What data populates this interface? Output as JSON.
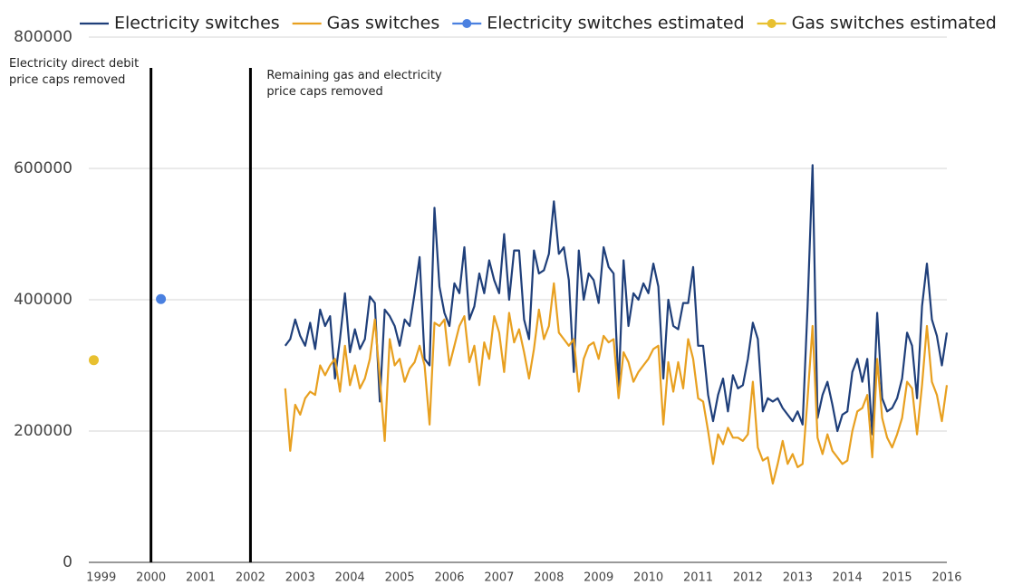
{
  "chart_data": {
    "type": "line",
    "series": [
      {
        "name": "Electricity switches",
        "color": "#1f3f7a",
        "x": [
          2002.7,
          2002.8,
          2002.9,
          2003.0,
          2003.1,
          2003.2,
          2003.3,
          2003.4,
          2003.5,
          2003.6,
          2003.7,
          2003.8,
          2003.9,
          2004.0,
          2004.1,
          2004.2,
          2004.3,
          2004.4,
          2004.5,
          2004.6,
          2004.7,
          2004.8,
          2004.9,
          2005.0,
          2005.1,
          2005.2,
          2005.3,
          2005.4,
          2005.5,
          2005.6,
          2005.7,
          2005.8,
          2005.9,
          2006.0,
          2006.1,
          2006.2,
          2006.3,
          2006.4,
          2006.5,
          2006.6,
          2006.7,
          2006.8,
          2006.9,
          2007.0,
          2007.1,
          2007.2,
          2007.3,
          2007.4,
          2007.5,
          2007.6,
          2007.7,
          2007.8,
          2007.9,
          2008.0,
          2008.1,
          2008.2,
          2008.3,
          2008.4,
          2008.5,
          2008.6,
          2008.7,
          2008.8,
          2008.9,
          2009.0,
          2009.1,
          2009.2,
          2009.3,
          2009.4,
          2009.5,
          2009.6,
          2009.7,
          2009.8,
          2009.9,
          2010.0,
          2010.1,
          2010.2,
          2010.3,
          2010.4,
          2010.5,
          2010.6,
          2010.7,
          2010.8,
          2010.9,
          2011.0,
          2011.1,
          2011.2,
          2011.3,
          2011.4,
          2011.5,
          2011.6,
          2011.7,
          2011.8,
          2011.9,
          2012.0,
          2012.1,
          2012.2,
          2012.3,
          2012.4,
          2012.5,
          2012.6,
          2012.7,
          2012.8,
          2012.9,
          2013.0,
          2013.1,
          2013.2,
          2013.3,
          2013.4,
          2013.5,
          2013.6,
          2013.7,
          2013.8,
          2013.9,
          2014.0,
          2014.1,
          2014.2,
          2014.3,
          2014.4,
          2014.5,
          2014.6,
          2014.7,
          2014.8,
          2014.9,
          2015.0,
          2015.1,
          2015.2,
          2015.3,
          2015.4,
          2015.5,
          2015.6,
          2015.7,
          2015.8,
          2015.9,
          2016.0
        ],
        "values": [
          330000,
          340000,
          370000,
          345000,
          330000,
          365000,
          325000,
          385000,
          360000,
          375000,
          280000,
          340000,
          410000,
          320000,
          355000,
          325000,
          340000,
          405000,
          395000,
          245000,
          385000,
          375000,
          360000,
          330000,
          370000,
          360000,
          410000,
          465000,
          310000,
          300000,
          540000,
          420000,
          380000,
          360000,
          425000,
          410000,
          480000,
          370000,
          390000,
          440000,
          410000,
          460000,
          430000,
          410000,
          500000,
          400000,
          475000,
          475000,
          370000,
          340000,
          475000,
          440000,
          445000,
          470000,
          550000,
          470000,
          480000,
          430000,
          290000,
          475000,
          400000,
          440000,
          430000,
          395000,
          480000,
          450000,
          440000,
          265000,
          460000,
          360000,
          410000,
          400000,
          425000,
          410000,
          455000,
          420000,
          280000,
          400000,
          360000,
          355000,
          395000,
          395000,
          450000,
          330000,
          330000,
          255000,
          215000,
          255000,
          280000,
          230000,
          285000,
          265000,
          270000,
          310000,
          365000,
          340000,
          230000,
          250000,
          245000,
          250000,
          235000,
          225000,
          215000,
          230000,
          210000,
          390000,
          605000,
          220000,
          255000,
          275000,
          240000,
          200000,
          225000,
          230000,
          290000,
          310000,
          275000,
          310000,
          195000,
          380000,
          250000,
          230000,
          235000,
          250000,
          280000,
          350000,
          330000,
          250000,
          390000,
          455000,
          370000,
          345000,
          300000,
          350000
        ]
      },
      {
        "name": "Gas switches",
        "color": "#e8a020",
        "x": [
          2002.7,
          2002.8,
          2002.9,
          2003.0,
          2003.1,
          2003.2,
          2003.3,
          2003.4,
          2003.5,
          2003.6,
          2003.7,
          2003.8,
          2003.9,
          2004.0,
          2004.1,
          2004.2,
          2004.3,
          2004.4,
          2004.5,
          2004.6,
          2004.7,
          2004.8,
          2004.9,
          2005.0,
          2005.1,
          2005.2,
          2005.3,
          2005.4,
          2005.5,
          2005.6,
          2005.7,
          2005.8,
          2005.9,
          2006.0,
          2006.1,
          2006.2,
          2006.3,
          2006.4,
          2006.5,
          2006.6,
          2006.7,
          2006.8,
          2006.9,
          2007.0,
          2007.1,
          2007.2,
          2007.3,
          2007.4,
          2007.5,
          2007.6,
          2007.7,
          2007.8,
          2007.9,
          2008.0,
          2008.1,
          2008.2,
          2008.3,
          2008.4,
          2008.5,
          2008.6,
          2008.7,
          2008.8,
          2008.9,
          2009.0,
          2009.1,
          2009.2,
          2009.3,
          2009.4,
          2009.5,
          2009.6,
          2009.7,
          2009.8,
          2009.9,
          2010.0,
          2010.1,
          2010.2,
          2010.3,
          2010.4,
          2010.5,
          2010.6,
          2010.7,
          2010.8,
          2010.9,
          2011.0,
          2011.1,
          2011.2,
          2011.3,
          2011.4,
          2011.5,
          2011.6,
          2011.7,
          2011.8,
          2011.9,
          2012.0,
          2012.1,
          2012.2,
          2012.3,
          2012.4,
          2012.5,
          2012.6,
          2012.7,
          2012.8,
          2012.9,
          2013.0,
          2013.1,
          2013.2,
          2013.3,
          2013.4,
          2013.5,
          2013.6,
          2013.7,
          2013.8,
          2013.9,
          2014.0,
          2014.1,
          2014.2,
          2014.3,
          2014.4,
          2014.5,
          2014.6,
          2014.7,
          2014.8,
          2014.9,
          2015.0,
          2015.1,
          2015.2,
          2015.3,
          2015.4,
          2015.5,
          2015.6,
          2015.7,
          2015.8,
          2015.9,
          2016.0
        ],
        "values": [
          265000,
          170000,
          240000,
          225000,
          250000,
          260000,
          255000,
          300000,
          285000,
          300000,
          310000,
          260000,
          330000,
          270000,
          300000,
          265000,
          280000,
          310000,
          370000,
          280000,
          185000,
          340000,
          300000,
          310000,
          275000,
          295000,
          305000,
          330000,
          300000,
          210000,
          365000,
          360000,
          370000,
          300000,
          330000,
          360000,
          375000,
          305000,
          330000,
          270000,
          335000,
          310000,
          375000,
          350000,
          290000,
          380000,
          335000,
          355000,
          320000,
          280000,
          325000,
          385000,
          340000,
          360000,
          425000,
          350000,
          340000,
          330000,
          340000,
          260000,
          310000,
          330000,
          335000,
          310000,
          345000,
          335000,
          340000,
          250000,
          320000,
          305000,
          275000,
          290000,
          300000,
          310000,
          325000,
          330000,
          210000,
          305000,
          260000,
          305000,
          265000,
          340000,
          310000,
          250000,
          245000,
          200000,
          150000,
          195000,
          180000,
          205000,
          190000,
          190000,
          185000,
          195000,
          275000,
          175000,
          155000,
          160000,
          120000,
          150000,
          185000,
          150000,
          165000,
          145000,
          150000,
          250000,
          360000,
          190000,
          165000,
          195000,
          170000,
          160000,
          150000,
          155000,
          200000,
          230000,
          235000,
          255000,
          160000,
          310000,
          220000,
          190000,
          175000,
          195000,
          220000,
          275000,
          265000,
          195000,
          270000,
          360000,
          275000,
          255000,
          215000,
          270000
        ]
      },
      {
        "name": "Electricity switches estimated",
        "color": "#4a80e0",
        "x": [
          2000.2
        ],
        "values": [
          401000
        ]
      },
      {
        "name": "Gas switches estimated",
        "color": "#e8c030",
        "x": [
          1998.85
        ],
        "values": [
          308000
        ]
      }
    ],
    "annotations": [
      {
        "x": 2000,
        "label": "Electricity direct debit price caps removed"
      },
      {
        "x": 2002,
        "label": "Remaining gas and electricity price caps removed"
      }
    ],
    "xlim": [
      1998.75,
      2016
    ],
    "xticks": [
      1999,
      2000,
      2001,
      2002,
      2003,
      2004,
      2005,
      2006,
      2007,
      2008,
      2009,
      2010,
      2011,
      2012,
      2013,
      2014,
      2015,
      2016
    ],
    "ylim": [
      0,
      800000
    ],
    "yticks": [
      0,
      200000,
      400000,
      600000,
      800000
    ],
    "grid": true
  }
}
